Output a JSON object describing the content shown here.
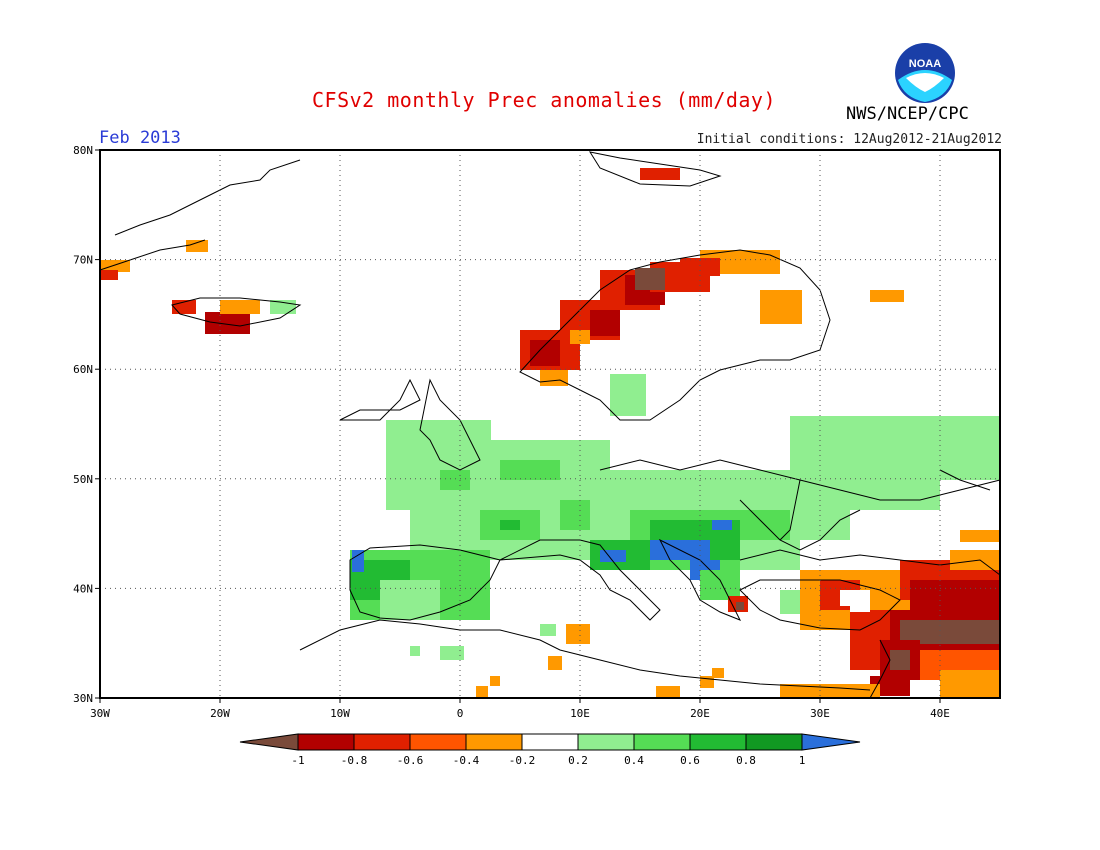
{
  "header": {
    "title": "CFSv2 monthly Prec anomalies (mm/day)",
    "month": "Feb 2013",
    "initial_conditions": "Initial conditions: 12Aug2012-21Aug2012",
    "agency": "NWS/NCEP/CPC",
    "logo_text": "NOAA"
  },
  "axes": {
    "lat_ticks": [
      {
        "value": 80,
        "label": "80N"
      },
      {
        "value": 70,
        "label": "70N"
      },
      {
        "value": 60,
        "label": "60N"
      },
      {
        "value": 50,
        "label": "50N"
      },
      {
        "value": 40,
        "label": "40N"
      },
      {
        "value": 30,
        "label": "30N"
      }
    ],
    "lon_ticks": [
      {
        "value": -30,
        "label": "30W"
      },
      {
        "value": -20,
        "label": "20W"
      },
      {
        "value": -10,
        "label": "10W"
      },
      {
        "value": 0,
        "label": "0"
      },
      {
        "value": 10,
        "label": "10E"
      },
      {
        "value": 20,
        "label": "20E"
      },
      {
        "value": 30,
        "label": "30E"
      },
      {
        "value": 40,
        "label": "40E"
      }
    ],
    "lon_range": [
      -30,
      45
    ],
    "lat_range": [
      30,
      80
    ],
    "grid": "dotted"
  },
  "legend": {
    "labels": [
      "-1",
      "-0.8",
      "-0.6",
      "-0.4",
      "-0.2",
      "0.2",
      "0.4",
      "0.6",
      "0.8",
      "1"
    ],
    "colors": [
      "#7a4a3a",
      "#b20000",
      "#e02000",
      "#ff5500",
      "#ff9900",
      "#ffffff",
      "#90ee90",
      "#55dd55",
      "#22bb33",
      "#119922",
      "#2a6fdb"
    ]
  }
}
